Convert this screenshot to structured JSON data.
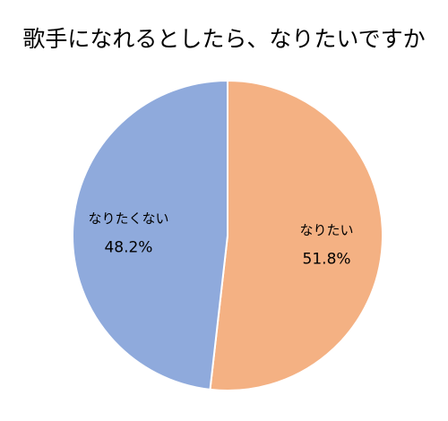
{
  "chart_data": {
    "type": "pie",
    "title": "歌手になれるとしたら、なりたいですか",
    "categories": [
      "なりたい",
      "なりたくない"
    ],
    "values": [
      51.8,
      48.2
    ],
    "value_labels": [
      "51.8%",
      "48.2%"
    ],
    "colors": [
      "#f4b183",
      "#8faadc"
    ]
  }
}
